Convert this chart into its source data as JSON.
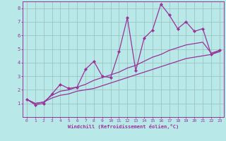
{
  "xlabel": "Windchill (Refroidissement éolien,°C)",
  "bg_color": "#b8e8e8",
  "line_color": "#993399",
  "grid_color": "#99bbbb",
  "x_data": [
    0,
    1,
    2,
    3,
    4,
    5,
    6,
    7,
    8,
    9,
    10,
    11,
    12,
    13,
    14,
    15,
    16,
    17,
    18,
    19,
    20,
    21,
    22,
    23
  ],
  "y_zigzag": [
    1.3,
    0.9,
    1.0,
    1.7,
    2.4,
    2.1,
    2.2,
    3.5,
    4.1,
    3.0,
    2.9,
    4.8,
    7.3,
    3.4,
    5.8,
    6.4,
    8.3,
    7.5,
    6.5,
    7.0,
    6.3,
    6.5,
    4.6,
    4.9
  ],
  "y_upper_smooth": [
    1.3,
    1.0,
    1.1,
    1.6,
    1.9,
    2.0,
    2.2,
    2.4,
    2.7,
    2.9,
    3.1,
    3.3,
    3.6,
    3.8,
    4.1,
    4.4,
    4.6,
    4.9,
    5.1,
    5.3,
    5.4,
    5.5,
    4.7,
    4.9
  ],
  "y_lower_smooth": [
    1.3,
    1.0,
    1.1,
    1.4,
    1.6,
    1.7,
    1.9,
    2.0,
    2.1,
    2.3,
    2.5,
    2.7,
    2.9,
    3.1,
    3.3,
    3.5,
    3.7,
    3.9,
    4.1,
    4.3,
    4.4,
    4.5,
    4.6,
    4.8
  ],
  "ylim": [
    0,
    8.5
  ],
  "xlim": [
    -0.5,
    23.5
  ],
  "yticks": [
    1,
    2,
    3,
    4,
    5,
    6,
    7,
    8
  ],
  "xticks": [
    0,
    1,
    2,
    3,
    4,
    5,
    6,
    7,
    8,
    9,
    10,
    11,
    12,
    13,
    14,
    15,
    16,
    17,
    18,
    19,
    20,
    21,
    22,
    23
  ]
}
